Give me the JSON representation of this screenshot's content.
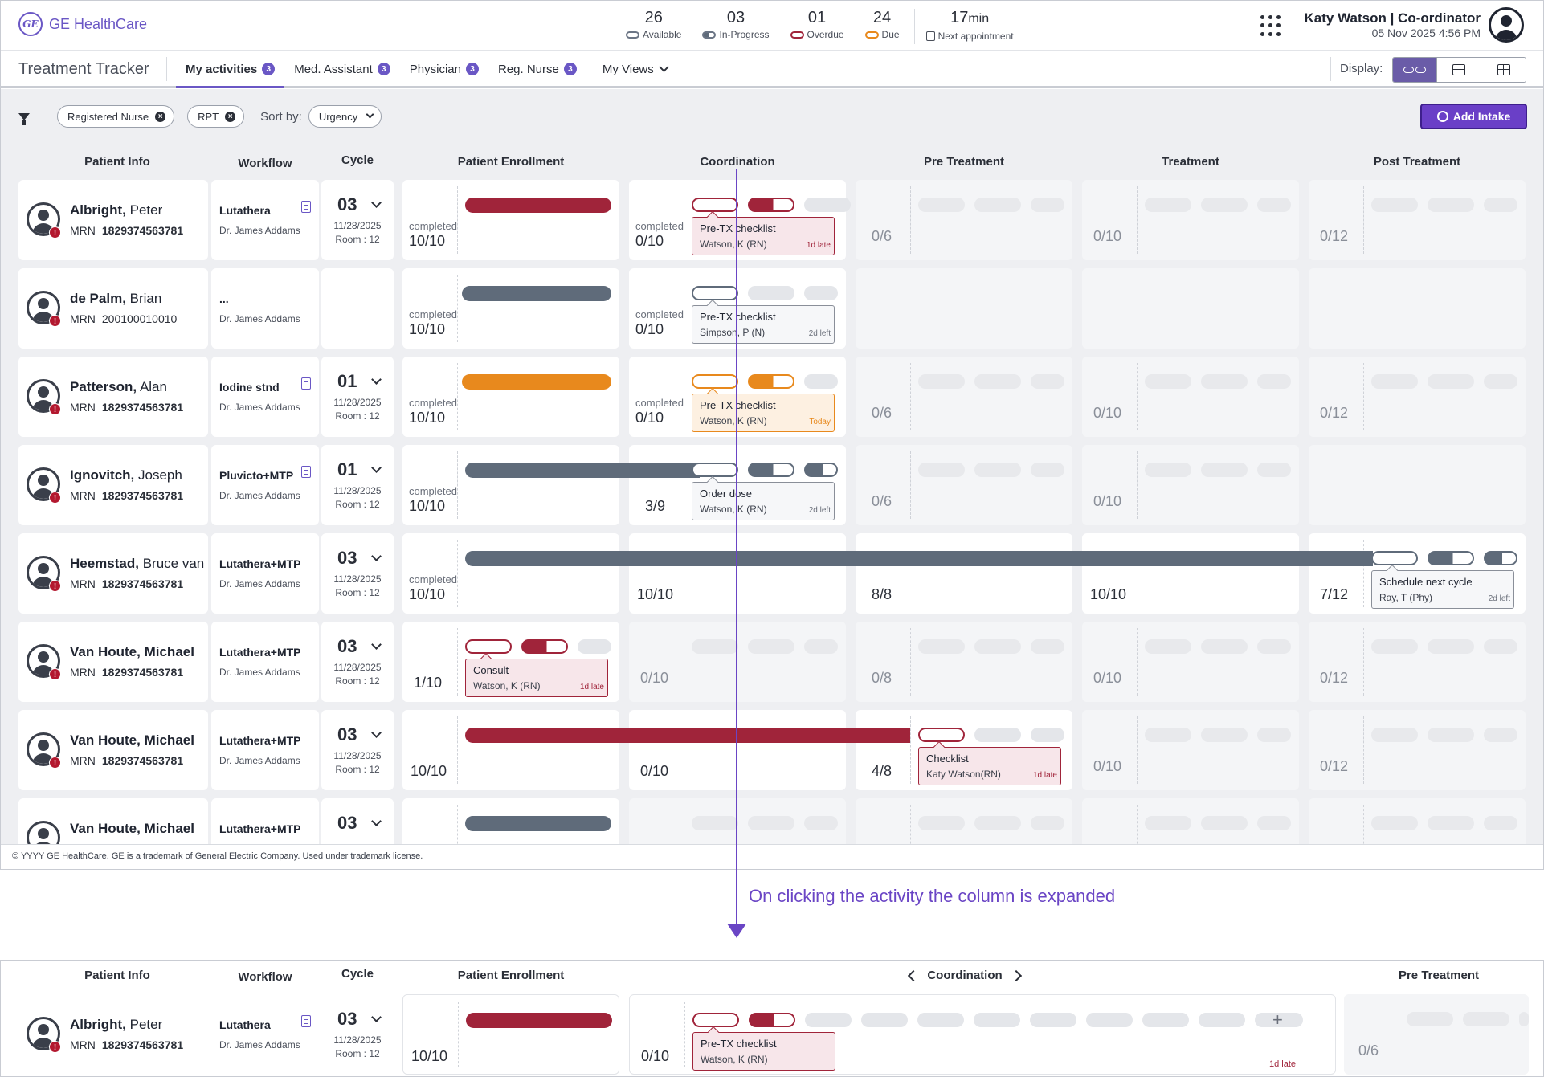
{
  "header": {
    "brand": "GE HealthCare",
    "logo_mark": "GE",
    "stats": [
      {
        "value": "26",
        "label": "Available",
        "icon": "available-pill-icon"
      },
      {
        "value": "03",
        "label": "In-Progress",
        "icon": "in-progress-pill-icon"
      },
      {
        "value": "01",
        "label": "Overdue",
        "icon": "overdue-pill-icon"
      },
      {
        "value": "24",
        "label": "Due",
        "icon": "due-pill-icon"
      }
    ],
    "next_appointment": {
      "value": "17",
      "unit": "min",
      "label": "Next appointment"
    },
    "user_name": "Katy Watson | Co-ordinator",
    "user_datetime": "05 Nov 2025 4:56 PM"
  },
  "nav": {
    "app_title": "Treatment Tracker",
    "tabs": [
      {
        "label": "My activities",
        "badge": "3"
      },
      {
        "label": "Med. Assistant",
        "badge": "3"
      },
      {
        "label": "Physician",
        "badge": "3"
      },
      {
        "label": "Reg. Nurse",
        "badge": "3"
      }
    ],
    "views_label": "My Views",
    "display_label": "Display:"
  },
  "filters": {
    "chips": [
      "Registered Nurse",
      "RPT"
    ],
    "sort_label": "Sort by:",
    "sort_value": "Urgency",
    "add_button": "Add Intake"
  },
  "columns": {
    "patient_info": "Patient Info",
    "workflow": "Workflow",
    "cycle": "Cycle",
    "phases": [
      "Patient Enrollment",
      "Coordination",
      "Pre Treatment",
      "Treatment",
      "Post Treatment"
    ]
  },
  "labels": {
    "completed": "completed",
    "mrn": "MRN"
  },
  "rows": [
    {
      "last": "Albright,",
      "first": "Peter",
      "mrn": "1829374563781",
      "workflow": "Lutathera",
      "doctor": "Dr. James Addams",
      "cycle": "03",
      "date": "11/28/2025",
      "room": "Room : 12",
      "counts": [
        "10/10",
        "0/10",
        "0/6",
        "0/10",
        "0/12"
      ],
      "tip": {
        "title": "Pre-TX checklist",
        "who": "Watson, K (RN)",
        "due": "1d late"
      }
    },
    {
      "last": "de Palm,",
      "first": "Brian",
      "mrn": "200100010010",
      "workflow": "...",
      "doctor": "Dr. James Addams",
      "counts": [
        "10/10",
        "0/10"
      ],
      "tip": {
        "title": "Pre-TX checklist",
        "who": "Simpson, P (N)",
        "due": "2d left"
      }
    },
    {
      "last": "Patterson,",
      "first": "Alan",
      "mrn": "1829374563781",
      "workflow": "Iodine stnd",
      "doctor": "Dr. James Addams",
      "cycle": "01",
      "date": "11/28/2025",
      "room": "Room : 12",
      "counts": [
        "10/10",
        "0/10",
        "0/6",
        "0/10",
        "0/12"
      ],
      "tip": {
        "title": "Pre-TX checklist",
        "who": "Watson, K (RN)",
        "due": "Today"
      }
    },
    {
      "last": "Ignovitch,",
      "first": "Joseph",
      "mrn": "1829374563781",
      "workflow": "Pluvicto+MTP",
      "doctor": "Dr. James Addams",
      "cycle": "01",
      "date": "11/28/2025",
      "room": "Room : 12",
      "counts": [
        "10/10",
        "3/9",
        "0/6",
        "0/10"
      ],
      "tip": {
        "title": "Order dose",
        "who": "Watson, K (RN)",
        "due": "2d left"
      }
    },
    {
      "last": "Heemstad,",
      "first": "Bruce van",
      "mrn": "1829374563781",
      "workflow": "Lutathera+MTP",
      "doctor": "Dr. James Addams",
      "cycle": "03",
      "date": "11/28/2025",
      "room": "Room : 12",
      "counts": [
        "10/10",
        "10/10",
        "8/8",
        "10/10",
        "7/12"
      ],
      "tip": {
        "title": "Schedule next cycle",
        "who": "Ray, T (Phy)",
        "due": "2d left"
      }
    },
    {
      "last": "Van Houte,",
      "first": "Michael",
      "mrn": "1829374563781",
      "workflow": "Lutathera+MTP",
      "doctor": "Dr. James Addams",
      "cycle": "03",
      "date": "11/28/2025",
      "room": "Room : 12",
      "counts": [
        "1/10",
        "0/10",
        "0/8",
        "0/10",
        "0/12"
      ],
      "tip": {
        "title": "Consult",
        "who": "Watson, K (RN)",
        "due": "1d  late"
      }
    },
    {
      "last": "Van Houte,",
      "first": "Michael",
      "mrn": "1829374563781",
      "workflow": "Lutathera+MTP",
      "doctor": "Dr. James Addams",
      "cycle": "03",
      "date": "11/28/2025",
      "room": "Room : 12",
      "counts": [
        "10/10",
        "0/10",
        "4/8",
        "0/10",
        "0/12"
      ],
      "tip": {
        "title": "Checklist",
        "who": "Katy Watson(RN)",
        "due": "1d late"
      }
    }
  ],
  "footer": "© YYYY GE HealthCare. GE is a trademark of General Electric Company. Used under trademark license.",
  "annotation": "On clicking the activity the column is expanded",
  "expanded": {
    "phase_title": "Coordination",
    "left_phase": "Patient Enrollment",
    "right_phase": "Pre Treatment",
    "row": {
      "last": "Albright,",
      "first": "Peter",
      "mrn": "1829374563781",
      "workflow": "Lutathera",
      "doctor": "Dr. James Addams",
      "cycle": "03",
      "date": "11/28/2025",
      "room": "Room : 12",
      "counts": [
        "10/10",
        "0/10",
        "0/6"
      ],
      "tip": {
        "title": "Pre-TX checklist",
        "who": "Watson, K (RN)"
      },
      "late": "1d late",
      "add_symbol": "+"
    }
  },
  "colors": {
    "accent": "#6a57c5",
    "overdue": "#a0243a",
    "due": "#e8891d",
    "in_progress": "#5f6b7a"
  }
}
